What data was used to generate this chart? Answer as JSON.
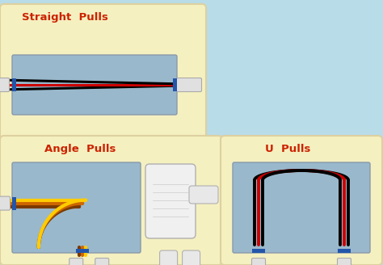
{
  "bg_color": "#b8dce8",
  "title_color": "#cc2200",
  "box_fill": "#f5f0c0",
  "inner_fill": "#99b8cc",
  "straight_pulls_label": "Straight  Pulls",
  "angle_pulls_label": "Angle  Pulls",
  "u_pulls_label": "U  Pulls",
  "wire_colors_straight": [
    "#000000",
    "#cc0000",
    "#000000"
  ],
  "wire_colors_angle": [
    "#7a3a00",
    "#cc6600",
    "#ffcc00"
  ],
  "wire_colors_u": [
    "#000000",
    "#cc0000",
    "#000000"
  ],
  "conduit_color": "#e0e0e0",
  "conduit_stroke": "#aaaaaa",
  "clip_color": "#2255aa",
  "label_fontsize": 9.5,
  "box_edge_color": "#ddd0a0"
}
